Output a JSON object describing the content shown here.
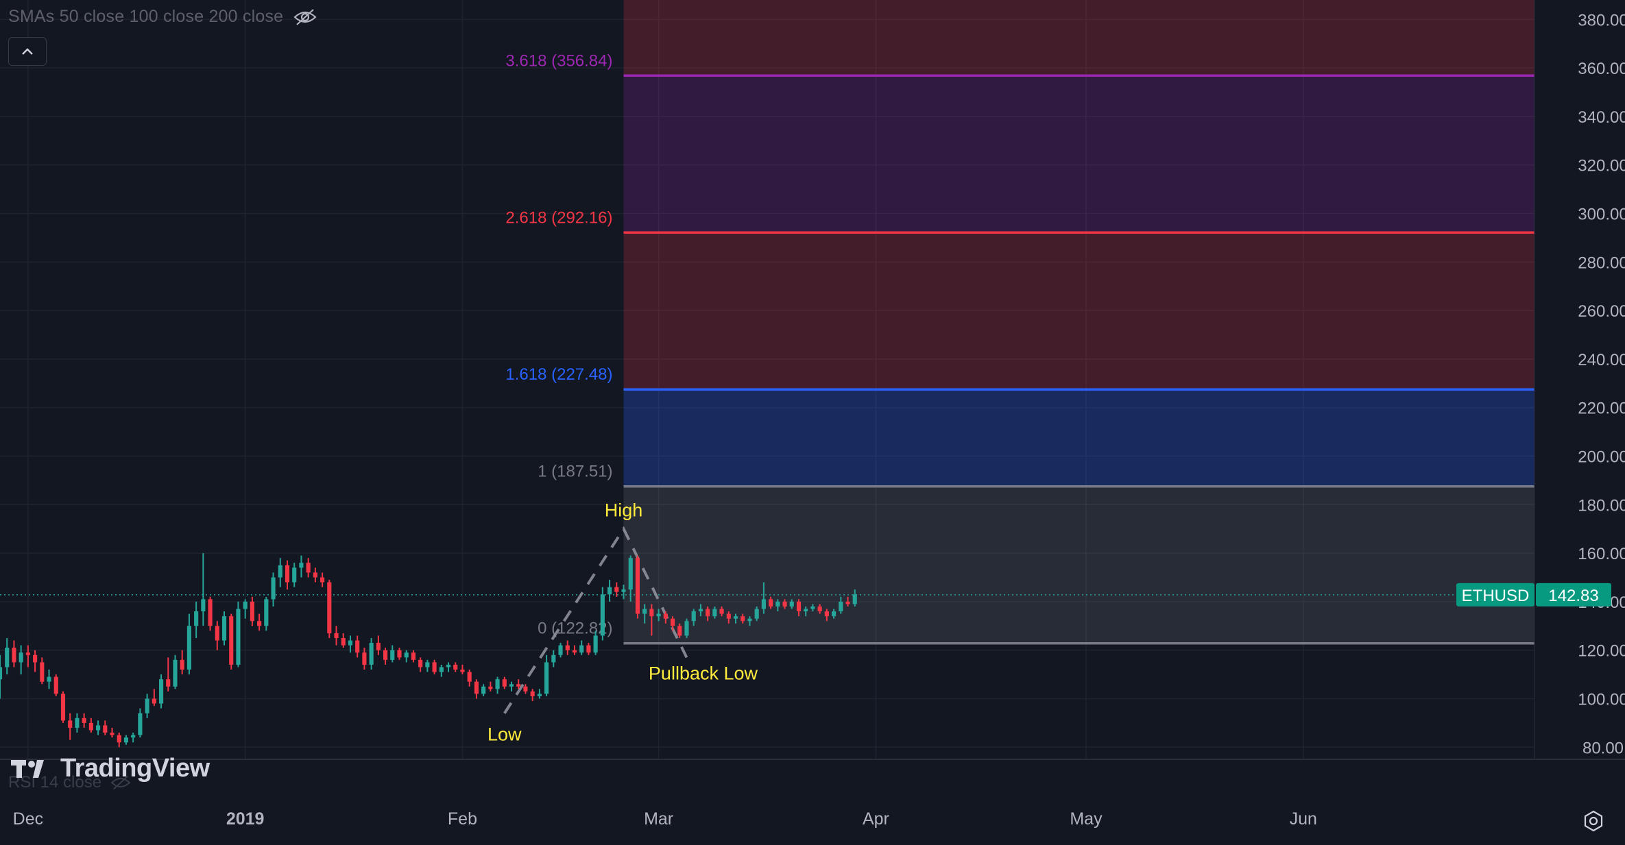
{
  "indicator_label": "SMAs 50 close 100 close 200 close",
  "rsi_label": "RSI 14 close",
  "brand": "TradingView",
  "symbol_tag": "ETHUSD",
  "last_price": "142.83",
  "colors": {
    "background": "#131722",
    "up": "#26a69a",
    "down": "#f23645",
    "fib_0": "#787b86",
    "fib_1": "#787b86",
    "fib_1618": "#2962ff",
    "fib_2618": "#f23645",
    "fib_3618": "#9c27b0",
    "annotation": "#ffeb3b"
  },
  "chart_data": {
    "type": "candlestick",
    "title": "",
    "xlabel": "",
    "ylabel": "",
    "y_axis": {
      "ticks": [
        "80.00",
        "100.00",
        "120.00",
        "140.00",
        "160.00",
        "180.00",
        "200.00",
        "220.00",
        "240.00",
        "260.00",
        "280.00",
        "300.00",
        "320.00",
        "340.00",
        "360.00",
        "380.00"
      ],
      "range": [
        75,
        388
      ]
    },
    "x_axis": {
      "ticks": [
        {
          "label": "Dec",
          "date": "2018-12-01"
        },
        {
          "label": "2019",
          "date": "2019-01-01"
        },
        {
          "label": "Feb",
          "date": "2019-02-01"
        },
        {
          "label": "Mar",
          "date": "2019-03-01"
        },
        {
          "label": "Apr",
          "date": "2019-04-01"
        },
        {
          "label": "May",
          "date": "2019-05-01"
        },
        {
          "label": "Jun",
          "date": "2019-06-01"
        }
      ],
      "range": [
        "2018-11-27",
        "2019-07-04"
      ]
    },
    "grid": true,
    "fib_extension": {
      "start_date": "2019-02-24",
      "end_date": "2019-07-04",
      "levels": [
        {
          "ratio": "0",
          "label": "0 (122.82)",
          "price": 122.82,
          "color": "#787b86"
        },
        {
          "ratio": "1",
          "label": "1 (187.51)",
          "price": 187.51,
          "color": "#787b86"
        },
        {
          "ratio": "1.618",
          "label": "1.618 (227.48)",
          "price": 227.48,
          "color": "#2962ff"
        },
        {
          "ratio": "2.618",
          "label": "2.618 (292.16)",
          "price": 292.16,
          "color": "#f23645"
        },
        {
          "ratio": "3.618",
          "label": "3.618 (356.84)",
          "price": 356.84,
          "color": "#9c27b0"
        }
      ]
    },
    "annotations": [
      {
        "text": "Low",
        "date": "2019-02-07",
        "price": 94
      },
      {
        "text": "High",
        "date": "2019-02-24",
        "price": 170
      },
      {
        "text": "Pullback Low",
        "date": "2019-03-05",
        "price": 117
      }
    ],
    "last_price": 142.83,
    "candles": [
      {
        "date": "2018-11-27",
        "o": 108,
        "h": 118,
        "l": 100,
        "c": 113
      },
      {
        "date": "2018-11-28",
        "o": 113,
        "h": 125,
        "l": 110,
        "c": 121
      },
      {
        "date": "2018-11-29",
        "o": 121,
        "h": 124,
        "l": 113,
        "c": 115
      },
      {
        "date": "2018-11-30",
        "o": 115,
        "h": 122,
        "l": 110,
        "c": 119
      },
      {
        "date": "2018-12-01",
        "o": 119,
        "h": 122,
        "l": 113,
        "c": 118
      },
      {
        "date": "2018-12-02",
        "o": 118,
        "h": 120,
        "l": 111,
        "c": 115
      },
      {
        "date": "2018-12-03",
        "o": 115,
        "h": 117,
        "l": 106,
        "c": 107
      },
      {
        "date": "2018-12-04",
        "o": 107,
        "h": 112,
        "l": 104,
        "c": 109
      },
      {
        "date": "2018-12-05",
        "o": 109,
        "h": 110,
        "l": 101,
        "c": 102
      },
      {
        "date": "2018-12-06",
        "o": 102,
        "h": 103,
        "l": 90,
        "c": 91
      },
      {
        "date": "2018-12-07",
        "o": 91,
        "h": 94,
        "l": 83,
        "c": 88
      },
      {
        "date": "2018-12-08",
        "o": 88,
        "h": 94,
        "l": 86,
        "c": 92
      },
      {
        "date": "2018-12-09",
        "o": 92,
        "h": 94,
        "l": 88,
        "c": 90
      },
      {
        "date": "2018-12-10",
        "o": 90,
        "h": 92,
        "l": 86,
        "c": 87
      },
      {
        "date": "2018-12-11",
        "o": 87,
        "h": 91,
        "l": 85,
        "c": 89
      },
      {
        "date": "2018-12-12",
        "o": 89,
        "h": 91,
        "l": 85,
        "c": 86
      },
      {
        "date": "2018-12-13",
        "o": 86,
        "h": 88,
        "l": 84,
        "c": 85
      },
      {
        "date": "2018-12-14",
        "o": 85,
        "h": 86,
        "l": 80,
        "c": 82
      },
      {
        "date": "2018-12-15",
        "o": 82,
        "h": 85,
        "l": 81,
        "c": 84
      },
      {
        "date": "2018-12-16",
        "o": 84,
        "h": 86,
        "l": 82,
        "c": 85
      },
      {
        "date": "2018-12-17",
        "o": 85,
        "h": 96,
        "l": 84,
        "c": 94
      },
      {
        "date": "2018-12-18",
        "o": 94,
        "h": 102,
        "l": 92,
        "c": 100
      },
      {
        "date": "2018-12-19",
        "o": 100,
        "h": 104,
        "l": 97,
        "c": 98
      },
      {
        "date": "2018-12-20",
        "o": 98,
        "h": 110,
        "l": 96,
        "c": 108
      },
      {
        "date": "2018-12-21",
        "o": 108,
        "h": 117,
        "l": 103,
        "c": 105
      },
      {
        "date": "2018-12-22",
        "o": 105,
        "h": 118,
        "l": 104,
        "c": 116
      },
      {
        "date": "2018-12-23",
        "o": 116,
        "h": 120,
        "l": 110,
        "c": 112
      },
      {
        "date": "2018-12-24",
        "o": 112,
        "h": 135,
        "l": 110,
        "c": 130
      },
      {
        "date": "2018-12-25",
        "o": 130,
        "h": 140,
        "l": 125,
        "c": 136
      },
      {
        "date": "2018-12-26",
        "o": 136,
        "h": 160,
        "l": 130,
        "c": 141
      },
      {
        "date": "2018-12-27",
        "o": 141,
        "h": 142,
        "l": 128,
        "c": 130
      },
      {
        "date": "2018-12-28",
        "o": 130,
        "h": 132,
        "l": 120,
        "c": 124
      },
      {
        "date": "2018-12-29",
        "o": 124,
        "h": 136,
        "l": 122,
        "c": 134
      },
      {
        "date": "2018-12-30",
        "o": 134,
        "h": 135,
        "l": 112,
        "c": 114
      },
      {
        "date": "2018-12-31",
        "o": 114,
        "h": 140,
        "l": 113,
        "c": 137
      },
      {
        "date": "2019-01-01",
        "o": 137,
        "h": 141,
        "l": 133,
        "c": 140
      },
      {
        "date": "2019-01-02",
        "o": 140,
        "h": 142,
        "l": 130,
        "c": 132
      },
      {
        "date": "2019-01-03",
        "o": 132,
        "h": 135,
        "l": 128,
        "c": 130
      },
      {
        "date": "2019-01-04",
        "o": 130,
        "h": 142,
        "l": 128,
        "c": 141
      },
      {
        "date": "2019-01-05",
        "o": 141,
        "h": 152,
        "l": 138,
        "c": 150
      },
      {
        "date": "2019-01-06",
        "o": 150,
        "h": 158,
        "l": 146,
        "c": 155
      },
      {
        "date": "2019-01-07",
        "o": 155,
        "h": 157,
        "l": 145,
        "c": 148
      },
      {
        "date": "2019-01-08",
        "o": 148,
        "h": 156,
        "l": 146,
        "c": 154
      },
      {
        "date": "2019-01-09",
        "o": 154,
        "h": 159,
        "l": 150,
        "c": 156
      },
      {
        "date": "2019-01-10",
        "o": 156,
        "h": 158,
        "l": 150,
        "c": 152
      },
      {
        "date": "2019-01-11",
        "o": 152,
        "h": 154,
        "l": 148,
        "c": 150
      },
      {
        "date": "2019-01-12",
        "o": 150,
        "h": 152,
        "l": 146,
        "c": 148
      },
      {
        "date": "2019-01-13",
        "o": 148,
        "h": 149,
        "l": 125,
        "c": 127
      },
      {
        "date": "2019-01-14",
        "o": 127,
        "h": 130,
        "l": 122,
        "c": 125
      },
      {
        "date": "2019-01-15",
        "o": 125,
        "h": 127,
        "l": 121,
        "c": 122
      },
      {
        "date": "2019-01-16",
        "o": 122,
        "h": 126,
        "l": 119,
        "c": 124
      },
      {
        "date": "2019-01-17",
        "o": 124,
        "h": 126,
        "l": 117,
        "c": 119
      },
      {
        "date": "2019-01-18",
        "o": 119,
        "h": 121,
        "l": 112,
        "c": 114
      },
      {
        "date": "2019-01-19",
        "o": 114,
        "h": 125,
        "l": 112,
        "c": 123
      },
      {
        "date": "2019-01-20",
        "o": 123,
        "h": 126,
        "l": 118,
        "c": 120
      },
      {
        "date": "2019-01-21",
        "o": 120,
        "h": 121,
        "l": 114,
        "c": 116
      },
      {
        "date": "2019-01-22",
        "o": 116,
        "h": 122,
        "l": 115,
        "c": 120
      },
      {
        "date": "2019-01-23",
        "o": 120,
        "h": 121,
        "l": 116,
        "c": 117
      },
      {
        "date": "2019-01-24",
        "o": 117,
        "h": 120,
        "l": 115,
        "c": 119
      },
      {
        "date": "2019-01-25",
        "o": 119,
        "h": 120,
        "l": 115,
        "c": 116
      },
      {
        "date": "2019-01-26",
        "o": 116,
        "h": 117,
        "l": 111,
        "c": 113
      },
      {
        "date": "2019-01-27",
        "o": 113,
        "h": 116,
        "l": 111,
        "c": 115
      },
      {
        "date": "2019-01-28",
        "o": 115,
        "h": 116,
        "l": 110,
        "c": 111
      },
      {
        "date": "2019-01-29",
        "o": 111,
        "h": 114,
        "l": 109,
        "c": 113
      },
      {
        "date": "2019-01-30",
        "o": 113,
        "h": 115,
        "l": 111,
        "c": 114
      },
      {
        "date": "2019-01-31",
        "o": 114,
        "h": 115,
        "l": 111,
        "c": 112
      },
      {
        "date": "2019-02-01",
        "o": 112,
        "h": 114,
        "l": 110,
        "c": 111
      },
      {
        "date": "2019-02-02",
        "o": 111,
        "h": 112,
        "l": 105,
        "c": 107
      },
      {
        "date": "2019-02-03",
        "o": 107,
        "h": 108,
        "l": 100,
        "c": 102
      },
      {
        "date": "2019-02-04",
        "o": 102,
        "h": 106,
        "l": 101,
        "c": 105
      },
      {
        "date": "2019-02-05",
        "o": 105,
        "h": 107,
        "l": 103,
        "c": 104
      },
      {
        "date": "2019-02-06",
        "o": 104,
        "h": 109,
        "l": 102,
        "c": 108
      },
      {
        "date": "2019-02-07",
        "o": 108,
        "h": 109,
        "l": 104,
        "c": 105
      },
      {
        "date": "2019-02-08",
        "o": 105,
        "h": 107,
        "l": 103,
        "c": 106
      },
      {
        "date": "2019-02-09",
        "o": 106,
        "h": 108,
        "l": 104,
        "c": 105
      },
      {
        "date": "2019-02-10",
        "o": 105,
        "h": 106,
        "l": 102,
        "c": 103
      },
      {
        "date": "2019-02-11",
        "o": 103,
        "h": 104,
        "l": 99,
        "c": 101
      },
      {
        "date": "2019-02-12",
        "o": 101,
        "h": 104,
        "l": 100,
        "c": 102
      },
      {
        "date": "2019-02-13",
        "o": 102,
        "h": 118,
        "l": 101,
        "c": 115
      },
      {
        "date": "2019-02-14",
        "o": 115,
        "h": 120,
        "l": 113,
        "c": 118
      },
      {
        "date": "2019-02-15",
        "o": 118,
        "h": 123,
        "l": 117,
        "c": 122
      },
      {
        "date": "2019-02-16",
        "o": 122,
        "h": 124,
        "l": 118,
        "c": 120
      },
      {
        "date": "2019-02-17",
        "o": 120,
        "h": 122,
        "l": 118,
        "c": 119
      },
      {
        "date": "2019-02-18",
        "o": 119,
        "h": 124,
        "l": 118,
        "c": 122
      },
      {
        "date": "2019-02-19",
        "o": 122,
        "h": 123,
        "l": 118,
        "c": 119
      },
      {
        "date": "2019-02-20",
        "o": 119,
        "h": 128,
        "l": 118,
        "c": 126
      },
      {
        "date": "2019-02-21",
        "o": 126,
        "h": 146,
        "l": 124,
        "c": 143
      },
      {
        "date": "2019-02-22",
        "o": 143,
        "h": 149,
        "l": 140,
        "c": 146
      },
      {
        "date": "2019-02-23",
        "o": 146,
        "h": 148,
        "l": 142,
        "c": 144
      },
      {
        "date": "2019-02-24",
        "o": 144,
        "h": 147,
        "l": 141,
        "c": 145
      },
      {
        "date": "2019-02-25",
        "o": 145,
        "h": 159,
        "l": 140,
        "c": 158
      },
      {
        "date": "2019-02-26",
        "o": 158,
        "h": 159,
        "l": 133,
        "c": 135
      },
      {
        "date": "2019-02-27",
        "o": 135,
        "h": 139,
        "l": 131,
        "c": 137
      },
      {
        "date": "2019-02-28",
        "o": 137,
        "h": 139,
        "l": 126,
        "c": 134
      },
      {
        "date": "2019-03-01",
        "o": 134,
        "h": 137,
        "l": 132,
        "c": 135
      },
      {
        "date": "2019-03-02",
        "o": 135,
        "h": 136,
        "l": 131,
        "c": 133
      },
      {
        "date": "2019-03-03",
        "o": 133,
        "h": 134,
        "l": 128,
        "c": 130
      },
      {
        "date": "2019-03-04",
        "o": 130,
        "h": 131,
        "l": 125,
        "c": 126
      },
      {
        "date": "2019-03-05",
        "o": 126,
        "h": 133,
        "l": 125,
        "c": 132
      },
      {
        "date": "2019-03-06",
        "o": 132,
        "h": 137,
        "l": 130,
        "c": 136
      },
      {
        "date": "2019-03-07",
        "o": 136,
        "h": 139,
        "l": 134,
        "c": 137
      },
      {
        "date": "2019-03-08",
        "o": 137,
        "h": 138,
        "l": 132,
        "c": 134
      },
      {
        "date": "2019-03-09",
        "o": 134,
        "h": 138,
        "l": 133,
        "c": 137
      },
      {
        "date": "2019-03-10",
        "o": 137,
        "h": 138,
        "l": 134,
        "c": 135
      },
      {
        "date": "2019-03-11",
        "o": 135,
        "h": 136,
        "l": 131,
        "c": 133
      },
      {
        "date": "2019-03-12",
        "o": 133,
        "h": 135,
        "l": 131,
        "c": 134
      },
      {
        "date": "2019-03-13",
        "o": 134,
        "h": 135,
        "l": 131,
        "c": 132
      },
      {
        "date": "2019-03-14",
        "o": 132,
        "h": 134,
        "l": 130,
        "c": 133
      },
      {
        "date": "2019-03-15",
        "o": 133,
        "h": 138,
        "l": 132,
        "c": 137
      },
      {
        "date": "2019-03-16",
        "o": 137,
        "h": 148,
        "l": 135,
        "c": 141
      },
      {
        "date": "2019-03-17",
        "o": 141,
        "h": 142,
        "l": 137,
        "c": 138
      },
      {
        "date": "2019-03-18",
        "o": 138,
        "h": 141,
        "l": 136,
        "c": 140
      },
      {
        "date": "2019-03-19",
        "o": 140,
        "h": 141,
        "l": 137,
        "c": 138
      },
      {
        "date": "2019-03-20",
        "o": 138,
        "h": 141,
        "l": 137,
        "c": 140
      },
      {
        "date": "2019-03-21",
        "o": 140,
        "h": 141,
        "l": 134,
        "c": 136
      },
      {
        "date": "2019-03-22",
        "o": 136,
        "h": 138,
        "l": 134,
        "c": 137
      },
      {
        "date": "2019-03-23",
        "o": 137,
        "h": 139,
        "l": 136,
        "c": 138
      },
      {
        "date": "2019-03-24",
        "o": 138,
        "h": 139,
        "l": 135,
        "c": 136
      },
      {
        "date": "2019-03-25",
        "o": 136,
        "h": 137,
        "l": 132,
        "c": 134
      },
      {
        "date": "2019-03-26",
        "o": 134,
        "h": 137,
        "l": 133,
        "c": 136
      },
      {
        "date": "2019-03-27",
        "o": 136,
        "h": 142,
        "l": 135,
        "c": 140
      },
      {
        "date": "2019-03-28",
        "o": 140,
        "h": 142,
        "l": 138,
        "c": 139
      },
      {
        "date": "2019-03-29",
        "o": 139,
        "h": 145,
        "l": 138,
        "c": 143
      }
    ]
  }
}
